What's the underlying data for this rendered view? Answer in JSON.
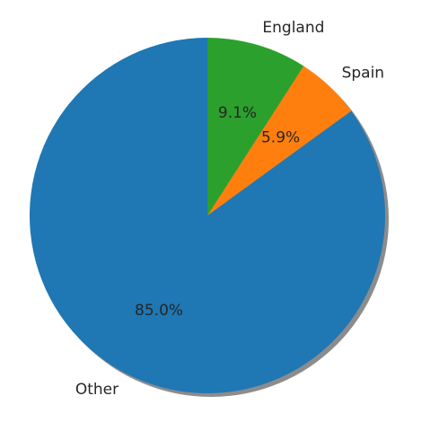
{
  "chart_data": {
    "type": "pie",
    "title": "",
    "start_angle_deg": 90,
    "direction": "counterclockwise",
    "shadow": true,
    "slices": [
      {
        "label": "Other",
        "value": 85.0,
        "pct_label": "85.0%",
        "color": "#1f77b4"
      },
      {
        "label": "Spain",
        "value": 5.9,
        "pct_label": "5.9%",
        "color": "#ff7f0e"
      },
      {
        "label": "England",
        "value": 9.1,
        "pct_label": "9.1%",
        "color": "#2ca02c"
      }
    ]
  }
}
